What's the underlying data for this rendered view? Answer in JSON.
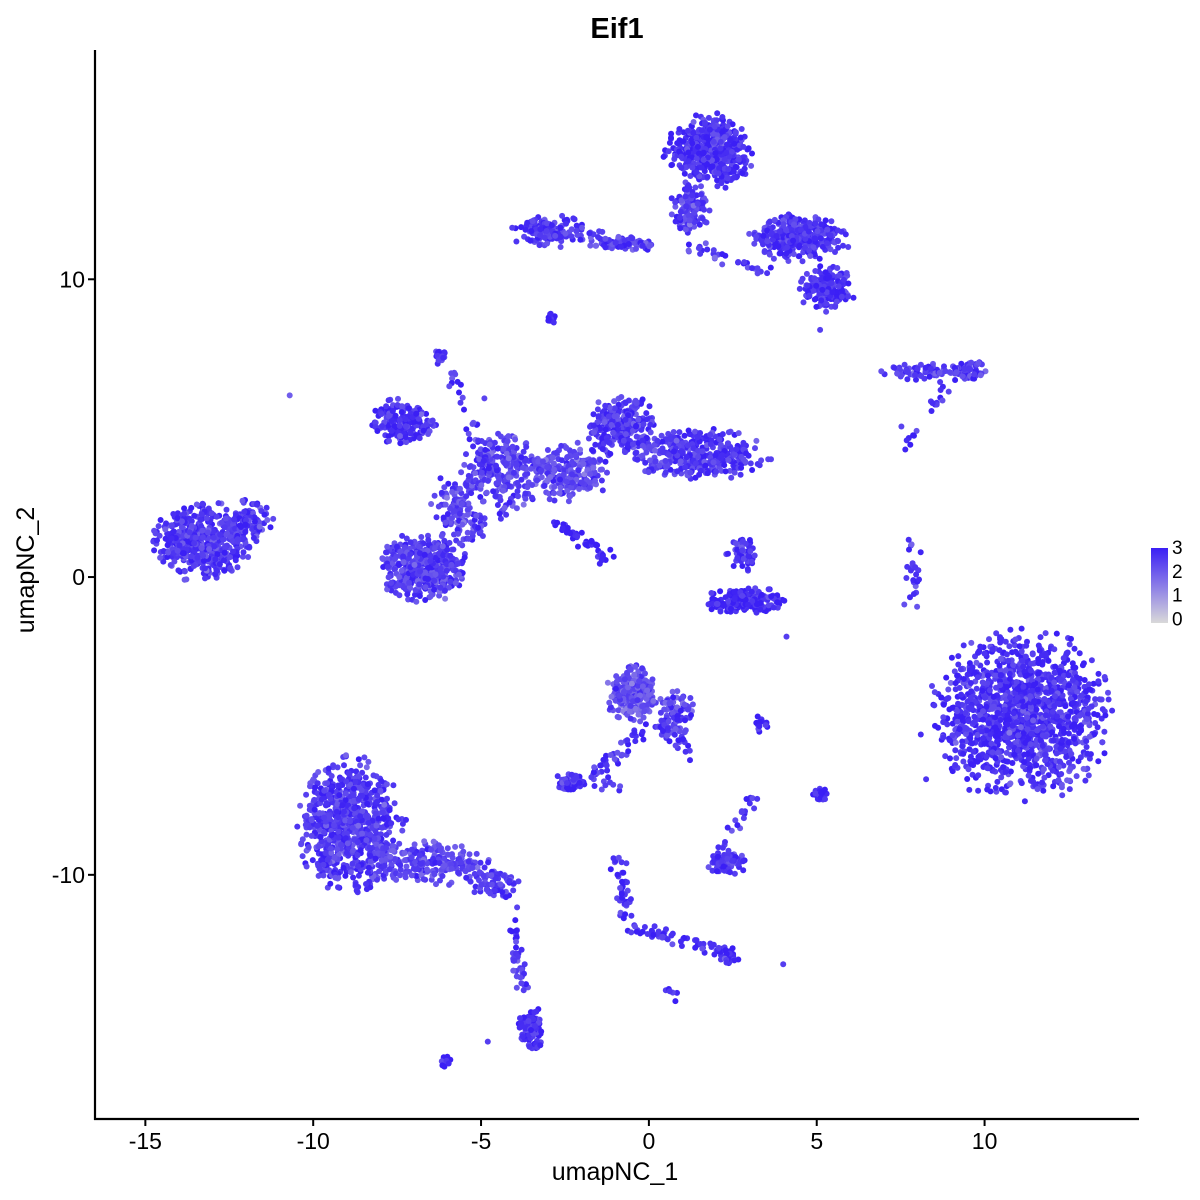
{
  "chart_data": {
    "type": "scatter",
    "title": "Eif1",
    "xlabel": "umapNC_1",
    "ylabel": "umapNC_2",
    "xlim": [
      -16.5,
      14.6
    ],
    "ylim": [
      -18.2,
      17.7
    ],
    "x_ticks": [
      -15,
      -10,
      -5,
      0,
      5,
      10
    ],
    "x_tick_labels": [
      "-15",
      "-10",
      "-5",
      "0",
      "5",
      "10"
    ],
    "y_ticks": [
      -10,
      0,
      10
    ],
    "y_tick_labels": [
      "-10",
      "0",
      "10"
    ],
    "grid": false,
    "legend": {
      "placement": "right",
      "type": "colorbar",
      "values": [
        0,
        1,
        2,
        3
      ],
      "labels": [
        "0",
        "1",
        "2",
        "3"
      ]
    },
    "colors": {
      "low": "#d9d9d9",
      "high": "#3b1ff5",
      "typical": "#7b5cf4"
    },
    "series": [
      {
        "clusters": [
          {
            "center": [
              11.1,
              -4.6
            ],
            "spread": [
              1.95,
              2.1
            ],
            "n": 1400,
            "mean": 2.7
          },
          {
            "center": [
              -13.3,
              1.2
            ],
            "spread": [
              1.1,
              0.95
            ],
            "n": 520,
            "mean": 2.6
          },
          {
            "center": [
              -11.9,
              1.8
            ],
            "spread": [
              0.5,
              0.6
            ],
            "n": 80,
            "mean": 2.6
          },
          {
            "center": [
              -8.9,
              -8.3
            ],
            "spread": [
              1.15,
              1.6
            ],
            "n": 800,
            "mean": 2.6
          },
          {
            "center": [
              -6.5,
              -9.6
            ],
            "spread": [
              1.2,
              0.55
            ],
            "n": 220,
            "mean": 2.4
          },
          {
            "center": [
              -4.6,
              -10.3
            ],
            "spread": [
              0.6,
              0.35
            ],
            "n": 70,
            "mean": 2.5
          },
          {
            "center": [
              -3.5,
              -15.2
            ],
            "spread": [
              0.3,
              0.55
            ],
            "n": 80,
            "mean": 2.7
          },
          {
            "center": [
              -6.7,
              0.3
            ],
            "spread": [
              1.0,
              0.85
            ],
            "n": 420,
            "mean": 2.5
          },
          {
            "center": [
              -5.6,
              2.3
            ],
            "spread": [
              0.7,
              0.9
            ],
            "n": 130,
            "mean": 2.4
          },
          {
            "center": [
              -7.4,
              5.2
            ],
            "spread": [
              0.75,
              0.55
            ],
            "n": 200,
            "mean": 2.6
          },
          {
            "center": [
              -4.3,
              3.8
            ],
            "spread": [
              1.0,
              0.8
            ],
            "n": 200,
            "mean": 2.4
          },
          {
            "center": [
              -2.4,
              3.5
            ],
            "spread": [
              0.85,
              0.75
            ],
            "n": 220,
            "mean": 2.3
          },
          {
            "center": [
              -0.8,
              5.1
            ],
            "spread": [
              0.75,
              0.8
            ],
            "n": 260,
            "mean": 2.6
          },
          {
            "center": [
              1.4,
              4.1
            ],
            "spread": [
              1.6,
              0.65
            ],
            "n": 380,
            "mean": 2.6
          },
          {
            "center": [
              1.8,
              14.3
            ],
            "spread": [
              0.95,
              0.9
            ],
            "n": 500,
            "mean": 2.7
          },
          {
            "center": [
              1.2,
              12.4
            ],
            "spread": [
              0.45,
              0.65
            ],
            "n": 120,
            "mean": 2.5
          },
          {
            "center": [
              4.4,
              11.4
            ],
            "spread": [
              1.1,
              0.55
            ],
            "n": 360,
            "mean": 2.6
          },
          {
            "center": [
              5.3,
              9.7
            ],
            "spread": [
              0.6,
              0.6
            ],
            "n": 160,
            "mean": 2.7
          },
          {
            "center": [
              -3.0,
              11.6
            ],
            "spread": [
              0.8,
              0.4
            ],
            "n": 140,
            "mean": 2.6
          },
          {
            "center": [
              -0.8,
              11.2
            ],
            "spread": [
              0.9,
              0.18
            ],
            "n": 60,
            "mean": 2.5
          },
          {
            "center": [
              -0.5,
              -3.9
            ],
            "spread": [
              0.55,
              0.7
            ],
            "n": 220,
            "mean": 2.2
          },
          {
            "center": [
              0.8,
              -4.6
            ],
            "spread": [
              0.45,
              0.6
            ],
            "n": 90,
            "mean": 2.4
          },
          {
            "center": [
              -2.4,
              -6.9
            ],
            "spread": [
              0.35,
              0.25
            ],
            "n": 60,
            "mean": 2.7
          },
          {
            "center": [
              2.9,
              -0.8
            ],
            "spread": [
              0.85,
              0.35
            ],
            "n": 200,
            "mean": 2.9
          },
          {
            "center": [
              2.8,
              0.8
            ],
            "spread": [
              0.35,
              0.45
            ],
            "n": 60,
            "mean": 2.6
          },
          {
            "center": [
              2.3,
              -9.6
            ],
            "spread": [
              0.45,
              0.3
            ],
            "n": 100,
            "mean": 2.6
          },
          {
            "center": [
              2.3,
              -12.7
            ],
            "spread": [
              0.3,
              0.25
            ],
            "n": 40,
            "mean": 2.8
          },
          {
            "center": [
              8.0,
              6.9
            ],
            "spread": [
              0.9,
              0.2
            ],
            "n": 70,
            "mean": 2.5
          },
          {
            "center": [
              9.5,
              6.9
            ],
            "spread": [
              0.5,
              0.25
            ],
            "n": 60,
            "mean": 2.6
          },
          {
            "center": [
              5.1,
              -7.3
            ],
            "spread": [
              0.15,
              0.2
            ],
            "n": 30,
            "mean": 2.9
          },
          {
            "center": [
              -6.2,
              7.4
            ],
            "spread": [
              0.15,
              0.2
            ],
            "n": 22,
            "mean": 2.8
          },
          {
            "center": [
              -2.9,
              8.7
            ],
            "spread": [
              0.1,
              0.15
            ],
            "n": 14,
            "mean": 2.8
          }
        ],
        "trails": [
          {
            "from": [
              -5.9,
              6.8
            ],
            "to": [
              -4.1,
              2.0
            ],
            "n": 50,
            "mean": 2.6
          },
          {
            "from": [
              -2.6,
              1.8
            ],
            "to": [
              -1.2,
              0.6
            ],
            "n": 50,
            "mean": 3.0
          },
          {
            "from": [
              -5.5,
              1.2
            ],
            "to": [
              -3.5,
              3.0
            ],
            "n": 40,
            "mean": 2.6
          },
          {
            "from": [
              -0.3,
              -5.2
            ],
            "to": [
              -1.7,
              -6.8
            ],
            "n": 40,
            "mean": 2.6
          },
          {
            "from": [
              0.1,
              -4.6
            ],
            "to": [
              1.2,
              -6.0
            ],
            "n": 35,
            "mean": 2.6
          },
          {
            "from": [
              -1.0,
              -9.4
            ],
            "to": [
              -0.5,
              -11.8
            ],
            "n": 40,
            "mean": 2.7
          },
          {
            "from": [
              -0.5,
              -11.8
            ],
            "to": [
              2.0,
              -12.5
            ],
            "n": 45,
            "mean": 2.7
          },
          {
            "from": [
              2.2,
              -9.2
            ],
            "to": [
              3.2,
              -7.2
            ],
            "n": 20,
            "mean": 2.6
          },
          {
            "from": [
              -4.1,
              -11.2
            ],
            "to": [
              -3.7,
              -14.0
            ],
            "n": 40,
            "mean": 2.6
          },
          {
            "from": [
              -0.8,
              11.3
            ],
            "to": [
              -2.2,
              11.6
            ],
            "n": 20,
            "mean": 2.4
          },
          {
            "from": [
              1.1,
              11.2
            ],
            "to": [
              3.5,
              10.2
            ],
            "n": 30,
            "mean": 2.5
          },
          {
            "from": [
              7.8,
              1.1
            ],
            "to": [
              7.9,
              -1.0
            ],
            "n": 25,
            "mean": 2.6
          },
          {
            "from": [
              8.8,
              6.4
            ],
            "to": [
              8.5,
              5.8
            ],
            "n": 12,
            "mean": 2.6
          },
          {
            "from": [
              7.6,
              4.9
            ],
            "to": [
              7.9,
              4.5
            ],
            "n": 8,
            "mean": 2.7
          },
          {
            "from": [
              3.2,
              -5.0
            ],
            "to": [
              3.6,
              -4.9
            ],
            "n": 12,
            "mean": 2.9
          },
          {
            "from": [
              -1.6,
              -7.0
            ],
            "to": [
              -0.7,
              -7.0
            ],
            "n": 8,
            "mean": 2.5
          },
          {
            "from": [
              -6.2,
              -16.3
            ],
            "to": [
              -5.9,
              -16.1
            ],
            "n": 10,
            "mean": 2.9
          },
          {
            "from": [
              0.5,
              -13.8
            ],
            "to": [
              0.7,
              -14.0
            ],
            "n": 6,
            "mean": 2.8
          }
        ],
        "points": [
          [
            -10.7,
            6.1,
            2.0
          ],
          [
            -4.8,
            -15.6,
            2.5
          ],
          [
            4.1,
            -2.0,
            2.5
          ],
          [
            5.1,
            8.3,
            2.5
          ],
          [
            4.0,
            -13.0,
            2.5
          ],
          [
            -4.9,
            6.0,
            2.4
          ]
        ]
      }
    ]
  }
}
